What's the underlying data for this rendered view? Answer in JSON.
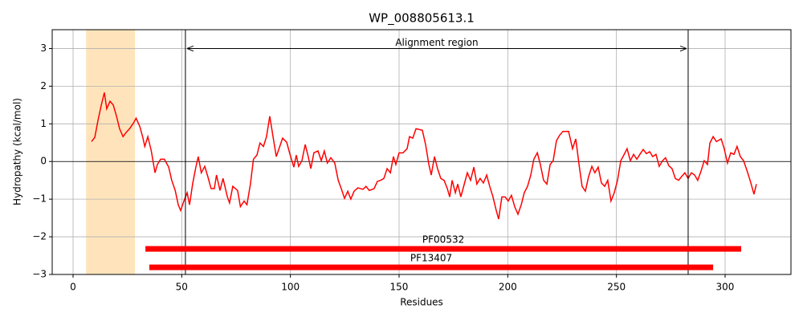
{
  "chart_data": {
    "type": "line",
    "title": "WP_008805613.1",
    "x_label": "Residues",
    "y_label": "Hydropathy (kcal/mol)",
    "xlim": [
      -9.6,
      330.3
    ],
    "ylim": [
      -3,
      3.5
    ],
    "xticks": [
      0,
      50,
      100,
      150,
      200,
      250,
      300
    ],
    "yticks": [
      {
        "value": -3,
        "label": "−3"
      },
      {
        "value": -2,
        "label": "−2"
      },
      {
        "value": -1,
        "label": "−1"
      },
      0,
      1,
      2,
      3
    ],
    "grid": true,
    "x": [
      8.5,
      10,
      11.5,
      13,
      14.4,
      15.5,
      17,
      18.5,
      20,
      21.4,
      23,
      24.4,
      26,
      28,
      29,
      30.7,
      32,
      33,
      34.4,
      36,
      37.7,
      38.8,
      40.3,
      42,
      44,
      45.4,
      47,
      48.4,
      49.5,
      51,
      52.5,
      53.6,
      55,
      56.5,
      57.6,
      59,
      60.6,
      62,
      63.5,
      65,
      66,
      67.6,
      69,
      71,
      72,
      73.5,
      75.7,
      77,
      78.7,
      80,
      81.6,
      83,
      84.6,
      86,
      87.6,
      89,
      90.5,
      92,
      93.5,
      95,
      96.4,
      98.3,
      99.8,
      101.6,
      102.7,
      103.8,
      105.3,
      106.8,
      108.2,
      109.4,
      110.8,
      112.7,
      114.2,
      115.6,
      117,
      118.6,
      120.4,
      122,
      123.4,
      124.9,
      126.4,
      127.8,
      129.3,
      131,
      133.4,
      134.8,
      136.3,
      138.5,
      140,
      141.5,
      143,
      144.5,
      146,
      147.4,
      148.5,
      150,
      151.8,
      153.7,
      154.8,
      156.3,
      157.8,
      160.7,
      162.2,
      163.7,
      164.8,
      166.3,
      167.7,
      169.2,
      170.7,
      172.2,
      173.3,
      174.4,
      175.9,
      177,
      178.4,
      180,
      181.4,
      182.9,
      184.4,
      185.8,
      187.3,
      188.8,
      190.3,
      191.7,
      193.2,
      194.7,
      195.8,
      197.3,
      198.8,
      200.2,
      201.7,
      203.2,
      204.7,
      206.2,
      207.6,
      209.1,
      210.6,
      212,
      213.6,
      215,
      216.5,
      218,
      219.5,
      220.9,
      222.4,
      223.9,
      225.4,
      228,
      229.8,
      231.3,
      232.8,
      234.2,
      235.7,
      237.2,
      238.7,
      240.1,
      241.6,
      243.1,
      244.6,
      246,
      247.5,
      249,
      250.5,
      252,
      253.4,
      254.9,
      256.4,
      257.9,
      259.4,
      260.8,
      262.3,
      263.8,
      265.3,
      266.7,
      268.2,
      269.7,
      271.2,
      272.6,
      274.1,
      275.6,
      277.1,
      278.6,
      280,
      281.5,
      283,
      284.5,
      286,
      287.4,
      288.9,
      290.4,
      291.9,
      293,
      294.5,
      296,
      298.2,
      299.6,
      301.1,
      302.6,
      304.1,
      305.5,
      307,
      308.5,
      310,
      311.5,
      313.3,
      314.4
    ],
    "series": [
      {
        "color": "#ff0000",
        "values": [
          0.53,
          0.64,
          1.1,
          1.5,
          1.83,
          1.4,
          1.6,
          1.5,
          1.2,
          0.87,
          0.66,
          0.77,
          0.87,
          1.04,
          1.15,
          0.93,
          0.66,
          0.4,
          0.66,
          0.28,
          -0.3,
          -0.08,
          0.06,
          0.06,
          -0.15,
          -0.5,
          -0.77,
          -1.15,
          -1.3,
          -1.05,
          -0.83,
          -1.15,
          -0.6,
          -0.15,
          0.13,
          -0.3,
          -0.13,
          -0.4,
          -0.72,
          -0.72,
          -0.36,
          -0.77,
          -0.45,
          -0.94,
          -1.1,
          -0.66,
          -0.77,
          -1.2,
          -1.05,
          -1.15,
          -0.6,
          0.06,
          0.17,
          0.49,
          0.4,
          0.66,
          1.2,
          0.66,
          0.13,
          0.38,
          0.62,
          0.51,
          0.19,
          -0.15,
          0.17,
          -0.13,
          0.02,
          0.45,
          0.13,
          -0.19,
          0.23,
          0.28,
          0.02,
          0.28,
          -0.04,
          0.1,
          -0.04,
          -0.5,
          -0.72,
          -0.98,
          -0.79,
          -1,
          -0.79,
          -0.7,
          -0.74,
          -0.66,
          -0.77,
          -0.72,
          -0.53,
          -0.5,
          -0.45,
          -0.19,
          -0.3,
          0.13,
          -0.08,
          0.23,
          0.23,
          0.34,
          0.66,
          0.62,
          0.87,
          0.83,
          0.45,
          -0.08,
          -0.36,
          0.13,
          -0.19,
          -0.45,
          -0.5,
          -0.72,
          -0.94,
          -0.5,
          -0.83,
          -0.6,
          -0.94,
          -0.6,
          -0.3,
          -0.5,
          -0.15,
          -0.6,
          -0.45,
          -0.57,
          -0.36,
          -0.66,
          -0.94,
          -1.3,
          -1.53,
          -0.94,
          -0.94,
          -1.05,
          -0.9,
          -1.2,
          -1.4,
          -1.15,
          -0.83,
          -0.66,
          -0.36,
          0.06,
          0.23,
          -0.08,
          -0.5,
          -0.6,
          -0.08,
          0.02,
          0.55,
          0.7,
          0.8,
          0.8,
          0.34,
          0.6,
          -0.08,
          -0.66,
          -0.79,
          -0.4,
          -0.13,
          -0.3,
          -0.15,
          -0.57,
          -0.66,
          -0.5,
          -1.05,
          -0.83,
          -0.5,
          0.02,
          0.17,
          0.34,
          0.02,
          0.19,
          0.06,
          0.19,
          0.32,
          0.21,
          0.26,
          0.13,
          0.19,
          -0.13,
          0.02,
          0.1,
          -0.11,
          -0.19,
          -0.45,
          -0.5,
          -0.4,
          -0.3,
          -0.45,
          -0.3,
          -0.36,
          -0.5,
          -0.26,
          0.02,
          -0.08,
          0.49,
          0.66,
          0.53,
          0.6,
          0.34,
          -0.04,
          0.23,
          0.19,
          0.4,
          0.13,
          0.02,
          -0.23,
          -0.5,
          -0.87,
          -0.6
        ]
      }
    ],
    "hline": 0,
    "span": {
      "start": 6,
      "end": 28.5,
      "color": "#ffe4bb"
    },
    "region": {
      "label": "Alignment region",
      "start": 51.7,
      "end": 283,
      "y": 3
    },
    "domains": [
      {
        "label": "PF00532",
        "start": 33.3,
        "end": 307.4,
        "y": -2.32,
        "color": "#ff0000"
      },
      {
        "label": "PF13407",
        "start": 35.1,
        "end": 294.5,
        "y": -2.81,
        "color": "#ff0000"
      }
    ]
  }
}
